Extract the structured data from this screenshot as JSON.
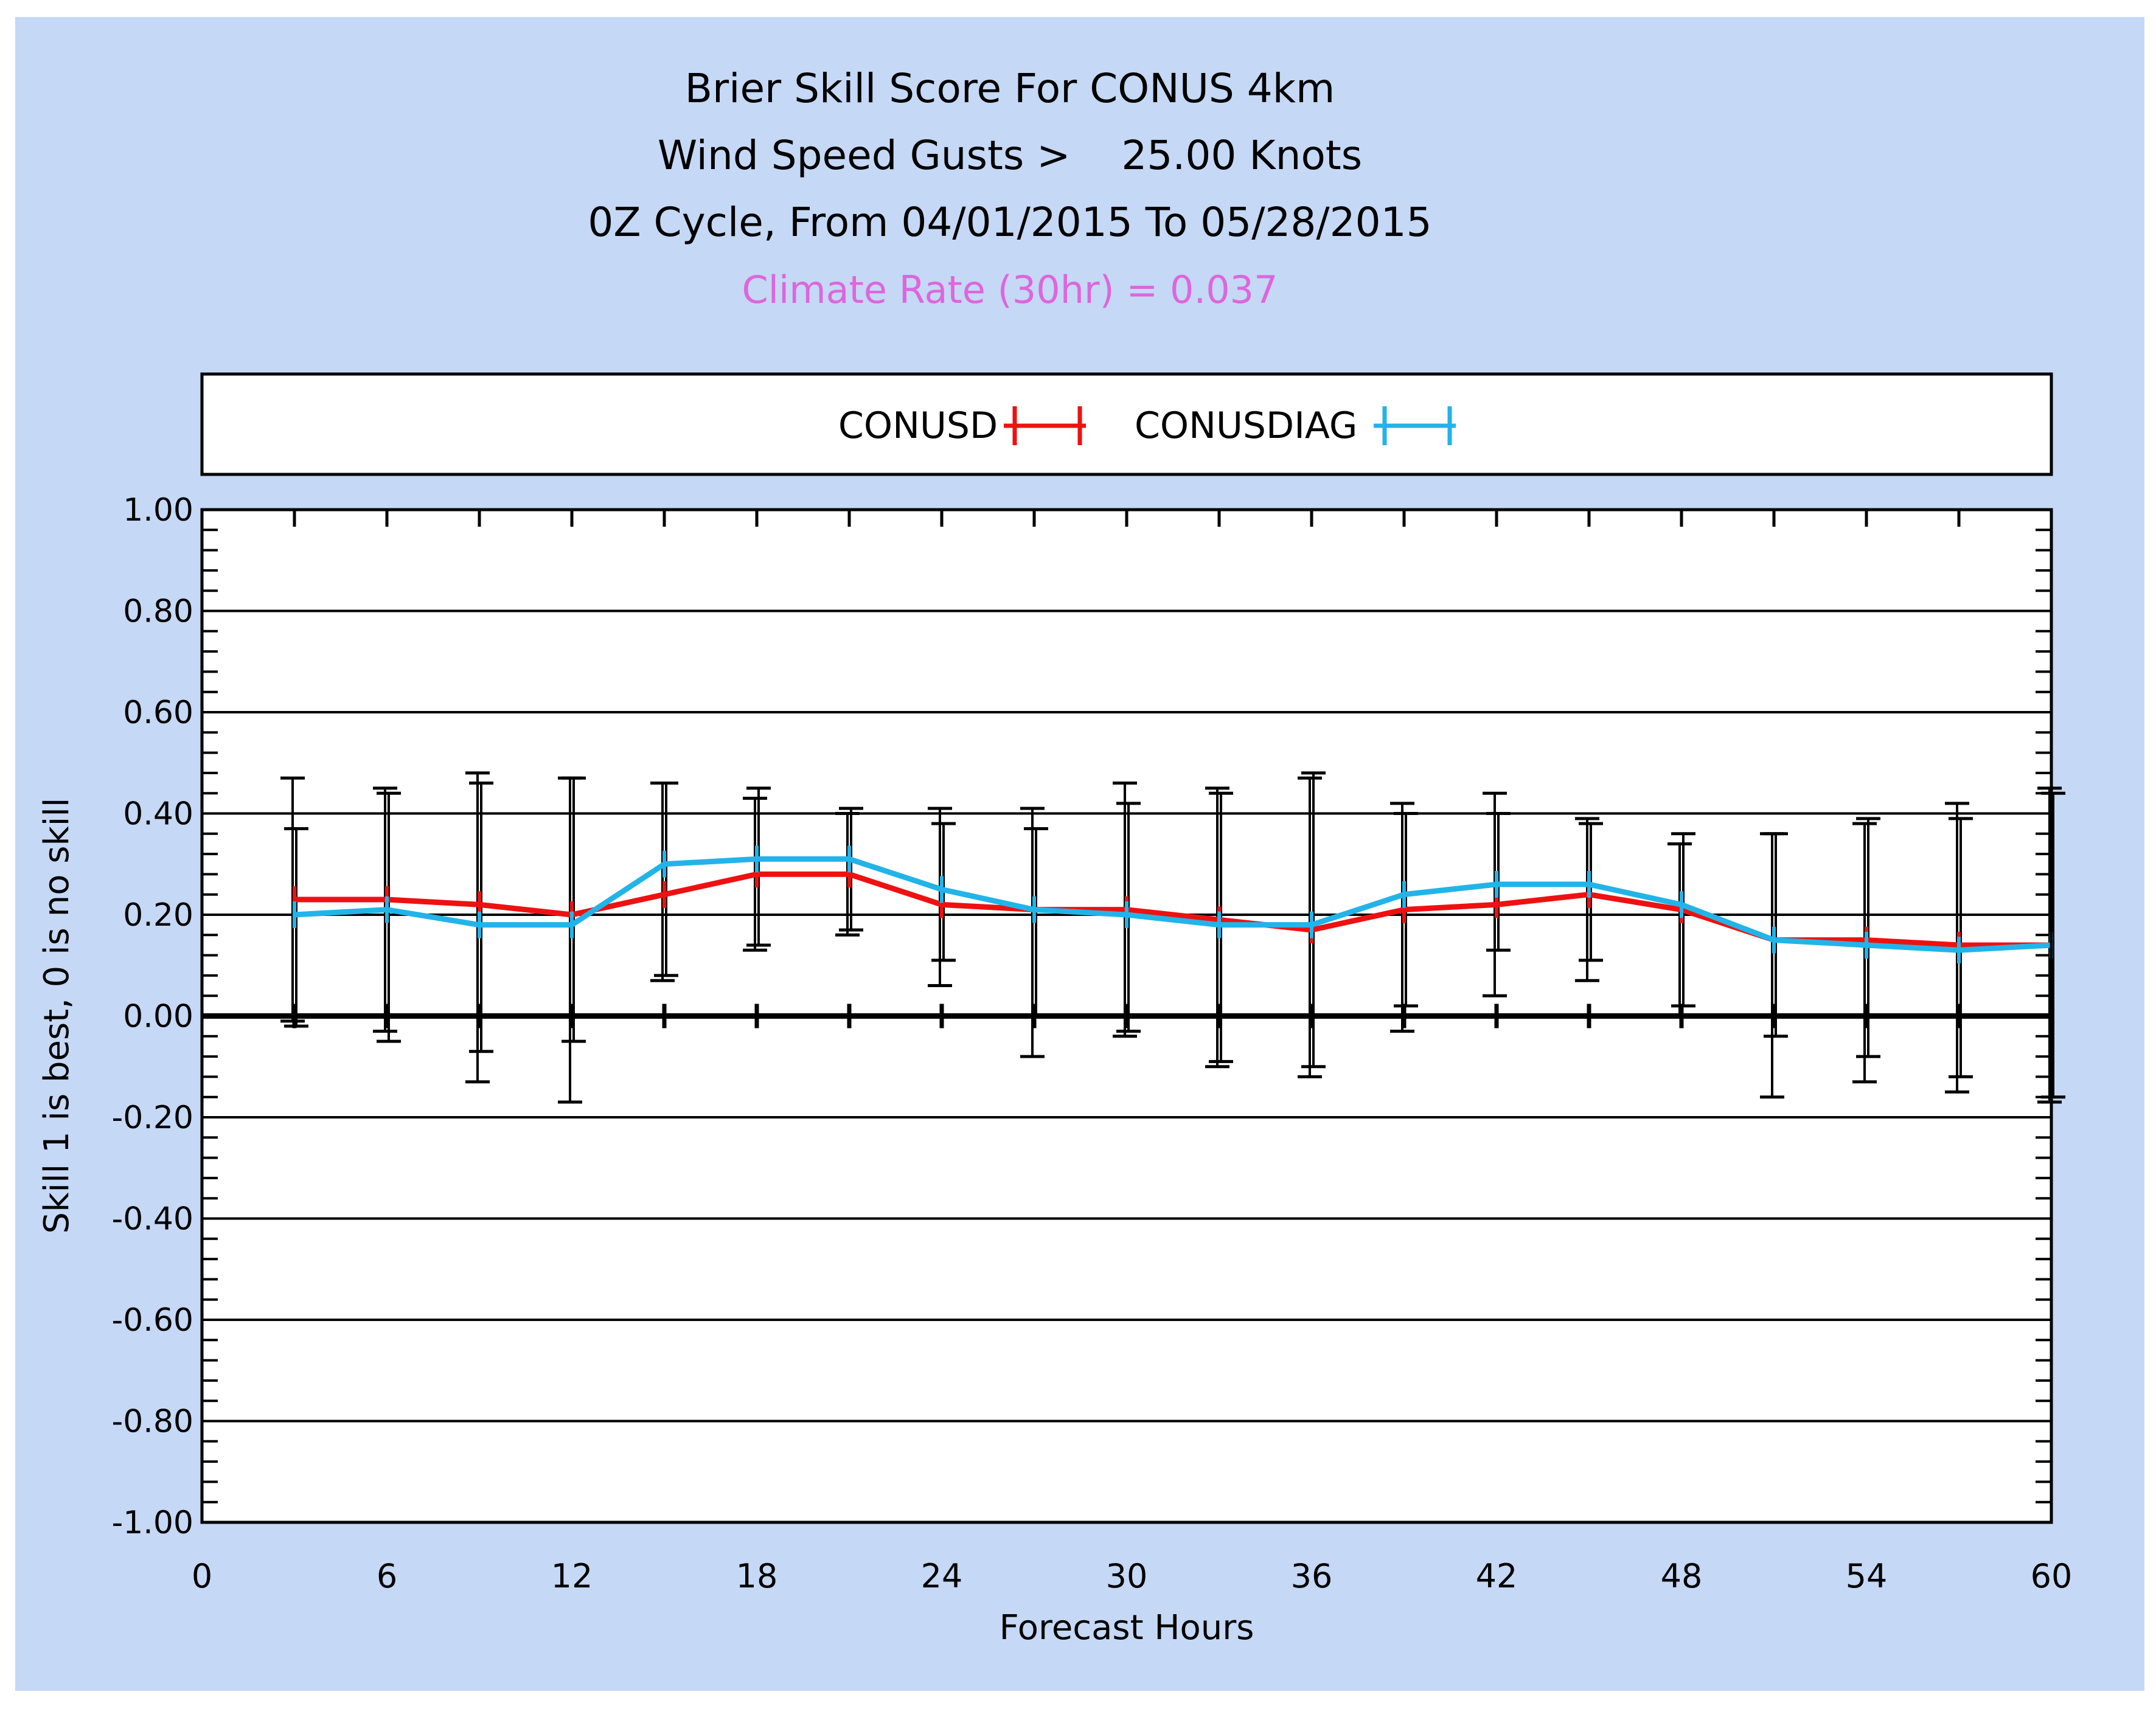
{
  "colors": {
    "background": "#c5d8f5",
    "plot_bg": "#ffffff",
    "conusd": "#ee1111",
    "conusdiag": "#22b4e8",
    "climate_text": "#dd66dd",
    "axis": "#000000"
  },
  "chart_data": {
    "type": "line",
    "title": "Brier Skill Score For CONUS 4km",
    "subtitle_1": "Wind Speed Gusts >    25.00 Knots",
    "subtitle_2": "0Z Cycle, From 04/01/2015 To 05/28/2015",
    "annotation": "Climate Rate (30hr) = 0.037",
    "xlabel": "Forecast Hours",
    "ylabel": "Skill 1 is best, 0 is no skill",
    "xlim": [
      0,
      60
    ],
    "ylim": [
      -1.0,
      1.0
    ],
    "x_ticks": [
      0,
      6,
      12,
      18,
      24,
      30,
      36,
      42,
      48,
      54,
      60
    ],
    "x_tick_labels": [
      "0",
      "6",
      "12",
      "18",
      "24",
      "30",
      "36",
      "42",
      "48",
      "54",
      "60"
    ],
    "y_ticks": [
      1.0,
      0.8,
      0.6,
      0.4,
      0.2,
      0.0,
      -0.2,
      -0.4,
      -0.6,
      -0.8,
      -1.0
    ],
    "y_tick_labels": [
      "1.00",
      "0.80",
      "0.60",
      "0.40",
      "0.20",
      "0.00",
      "-0.20",
      "-0.40",
      "-0.60",
      "-0.80",
      "-1.00"
    ],
    "legend": [
      "CONUSD",
      "CONUSDIAG"
    ],
    "x": [
      3,
      6,
      9,
      12,
      15,
      18,
      21,
      24,
      27,
      30,
      33,
      36,
      39,
      42,
      45,
      48,
      51,
      54,
      57,
      60
    ],
    "series": [
      {
        "name": "CONUSD",
        "values": [
          0.23,
          0.23,
          0.22,
          0.2,
          0.24,
          0.28,
          0.28,
          0.22,
          0.21,
          0.21,
          0.19,
          0.17,
          0.21,
          0.22,
          0.24,
          0.21,
          0.15,
          0.15,
          0.14,
          0.14
        ],
        "err_low": [
          -0.01,
          -0.03,
          -0.13,
          -0.17,
          0.07,
          0.13,
          0.16,
          0.06,
          -0.08,
          -0.04,
          -0.1,
          -0.12,
          -0.03,
          0.04,
          0.07,
          0.0,
          -0.16,
          -0.13,
          -0.15,
          -0.17
        ],
        "err_high": [
          0.47,
          0.45,
          0.48,
          0.47,
          0.46,
          0.43,
          0.4,
          0.41,
          0.41,
          0.46,
          0.45,
          0.47,
          0.42,
          0.44,
          0.39,
          0.34,
          0.36,
          0.38,
          0.42,
          0.45
        ]
      },
      {
        "name": "CONUSDIAG",
        "values": [
          0.2,
          0.21,
          0.18,
          0.18,
          0.3,
          0.31,
          0.31,
          0.25,
          0.21,
          0.2,
          0.18,
          0.18,
          0.24,
          0.26,
          0.26,
          0.22,
          0.15,
          0.14,
          0.13,
          0.14
        ],
        "err_low": [
          -0.02,
          -0.05,
          -0.07,
          -0.05,
          0.08,
          0.14,
          0.17,
          0.11,
          0.0,
          -0.03,
          -0.09,
          -0.1,
          0.02,
          0.13,
          0.11,
          0.02,
          -0.04,
          -0.08,
          -0.12,
          -0.16
        ],
        "err_high": [
          0.37,
          0.44,
          0.46,
          0.47,
          0.46,
          0.45,
          0.41,
          0.38,
          0.37,
          0.42,
          0.44,
          0.48,
          0.4,
          0.4,
          0.38,
          0.36,
          0.36,
          0.39,
          0.39,
          0.44
        ]
      }
    ]
  }
}
